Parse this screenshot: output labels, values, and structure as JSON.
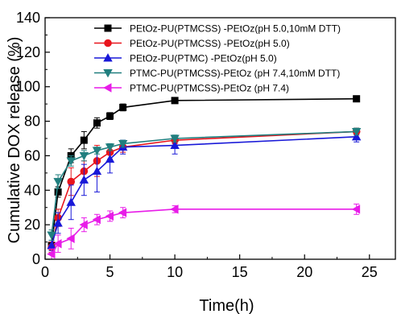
{
  "chart_data": {
    "type": "line",
    "title": "",
    "xlabel": "Time(h)",
    "ylabel": "Cumulative DOX release (%)",
    "xlim": [
      0,
      27
    ],
    "ylim": [
      0,
      140
    ],
    "xticks": [
      0,
      5,
      10,
      15,
      20,
      25
    ],
    "yticks": [
      0,
      20,
      40,
      60,
      80,
      100,
      120,
      140
    ],
    "legend_position": "top-right",
    "x": [
      0.5,
      1,
      2,
      3,
      4,
      5,
      6,
      10,
      24
    ],
    "series": [
      {
        "name": "PEtOz-PU(PTMCSS) -PEtOz(pH 5.0,10mM DTT)",
        "color": "#000000",
        "marker": "square",
        "values": [
          8,
          39,
          60,
          69,
          79,
          83,
          88,
          92,
          93
        ],
        "errors": [
          2,
          3,
          4,
          5,
          3,
          2,
          2,
          1,
          1
        ]
      },
      {
        "name": "PEtOz-PU(PTMCSS) -PEtOz(pH 5.0)",
        "color": "#e8141c",
        "marker": "circle",
        "values": [
          7,
          24,
          45,
          51,
          57,
          62,
          65,
          69,
          74
        ],
        "errors": [
          3,
          5,
          8,
          6,
          9,
          4,
          3,
          2,
          2
        ]
      },
      {
        "name": "PEtOz-PU(PTMC) -PEtOz(pH 5.0)",
        "color": "#1818d8",
        "marker": "triangle-up",
        "values": [
          8,
          21,
          33,
          46,
          51,
          58,
          65,
          66,
          71
        ],
        "errors": [
          3,
          6,
          10,
          9,
          12,
          8,
          4,
          5,
          3
        ]
      },
      {
        "name": "PTMC-PU(PTMCSS)-PEtOz (pH 7.4,10mM DTT)",
        "color": "#217f7f",
        "marker": "triangle-down",
        "values": [
          14,
          45,
          57,
          60,
          63,
          65,
          67,
          70,
          74
        ],
        "errors": [
          3,
          4,
          3,
          3,
          2,
          2,
          2,
          2,
          2
        ]
      },
      {
        "name": "PTMC-PU(PTMCSS)-PEtOz (pH 7.4)",
        "color": "#e81ce8",
        "marker": "triangle-left",
        "values": [
          3,
          9,
          12,
          20,
          23,
          25,
          27,
          29,
          29
        ],
        "errors": [
          3,
          5,
          6,
          4,
          3,
          3,
          3,
          2,
          3
        ]
      }
    ]
  }
}
